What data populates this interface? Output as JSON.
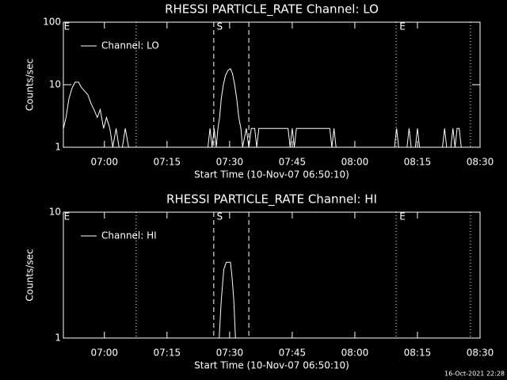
{
  "chart_data": [
    {
      "type": "line",
      "title": "RHESSI PARTICLE_RATE Channel: LO",
      "ylabel": "Counts/sec",
      "xlabel": "Start Time (10-Nov-07 06:50:10)",
      "log_y": true,
      "ylim": [
        1,
        100
      ],
      "yticks": [
        1,
        10,
        100
      ],
      "xlim": [
        410.17,
        510
      ],
      "xticks": [
        {
          "value": 420,
          "label": "07:00"
        },
        {
          "value": 435,
          "label": "07:15"
        },
        {
          "value": 450,
          "label": "07:30"
        },
        {
          "value": 465,
          "label": "07:45"
        },
        {
          "value": 480,
          "label": "08:00"
        },
        {
          "value": 495,
          "label": "08:15"
        },
        {
          "value": 510,
          "label": "08:30"
        }
      ],
      "legend": "upper left",
      "markers": [
        {
          "x": 427.6,
          "style": "dotted"
        },
        {
          "x": 446.2,
          "style": "dashed"
        },
        {
          "x": 454.6,
          "style": "dashed"
        },
        {
          "x": 489.9,
          "style": "dotted"
        },
        {
          "x": 507.7,
          "style": "dotted"
        }
      ],
      "annotations": [
        {
          "text": "E",
          "x": 410.3
        },
        {
          "text": "S",
          "x": 446.9
        },
        {
          "text": "E",
          "x": 490.7
        }
      ],
      "x": [
        410.2,
        410.8,
        411.5,
        412.3,
        413,
        413.8,
        414.5,
        415.2,
        416,
        416.8,
        417.5,
        418.3,
        419,
        419.8,
        420.5,
        421.3,
        422,
        422.8,
        423.5,
        424.3,
        425,
        425.8,
        430,
        444.8,
        445.3,
        445.8,
        446.3,
        446.8,
        447.2,
        447.6,
        448,
        448.5,
        449,
        449.6,
        450.2,
        450.7,
        451.2,
        451.7,
        452.2,
        452.7,
        453.1,
        454,
        454.6,
        455.2,
        456,
        456.5,
        457,
        464,
        464.5,
        465,
        465.5,
        466,
        474,
        474.5,
        475,
        475.5,
        476,
        489.5,
        490,
        490.5,
        492.5,
        493,
        493.5,
        494.5,
        495,
        495.5,
        501,
        501.5,
        502,
        503,
        503.5,
        504,
        504.5,
        505,
        505.5,
        508,
        510
      ],
      "series": [
        {
          "name": "Channel: LO",
          "color": "#ffffff",
          "values": [
            2,
            3,
            6,
            9,
            11,
            11,
            9,
            8,
            7,
            5,
            4,
            3,
            4,
            2,
            3,
            2,
            1,
            2,
            1,
            1,
            2,
            1,
            1,
            1,
            2,
            1,
            2,
            1,
            2,
            3,
            6,
            10,
            14,
            17,
            18,
            15,
            10,
            6,
            3,
            2,
            1,
            2,
            1,
            2,
            2,
            1,
            2,
            2,
            1,
            2,
            1,
            2,
            2,
            1,
            2,
            1,
            1,
            1,
            2,
            1,
            1,
            2,
            1,
            1,
            2,
            1,
            1,
            2,
            1,
            1,
            2,
            1,
            2,
            2,
            1,
            1,
            1
          ]
        }
      ]
    },
    {
      "type": "line",
      "title": "RHESSI PARTICLE_RATE Channel: HI",
      "ylabel": "Counts/sec",
      "xlabel": "Start Time (10-Nov-07 06:50:10)",
      "log_y": true,
      "ylim": [
        1,
        10
      ],
      "yticks": [
        1,
        10
      ],
      "xlim": [
        410.17,
        510
      ],
      "xticks": [
        {
          "value": 420,
          "label": "07:00"
        },
        {
          "value": 435,
          "label": "07:15"
        },
        {
          "value": 450,
          "label": "07:30"
        },
        {
          "value": 465,
          "label": "07:45"
        },
        {
          "value": 480,
          "label": "08:00"
        },
        {
          "value": 495,
          "label": "08:15"
        },
        {
          "value": 510,
          "label": "08:30"
        }
      ],
      "legend": "upper left",
      "markers": [
        {
          "x": 427.6,
          "style": "dotted"
        },
        {
          "x": 446.2,
          "style": "dashed"
        },
        {
          "x": 454.6,
          "style": "dashed"
        },
        {
          "x": 489.9,
          "style": "dotted"
        },
        {
          "x": 507.7,
          "style": "dotted"
        }
      ],
      "annotations": [
        {
          "text": "E",
          "x": 410.3
        },
        {
          "text": "S",
          "x": 446.9
        },
        {
          "text": "E",
          "x": 490.7
        }
      ],
      "x": [
        410.2,
        447.5,
        448,
        448.6,
        449.2,
        450.2,
        450.6,
        451,
        451.4,
        510
      ],
      "series": [
        {
          "name": "Channel: HI",
          "color": "#ffffff",
          "values": [
            1,
            1,
            2,
            3.5,
            4,
            4,
            3,
            2,
            1,
            1
          ]
        }
      ]
    }
  ],
  "footer": "16-Oct-2021 22:28"
}
